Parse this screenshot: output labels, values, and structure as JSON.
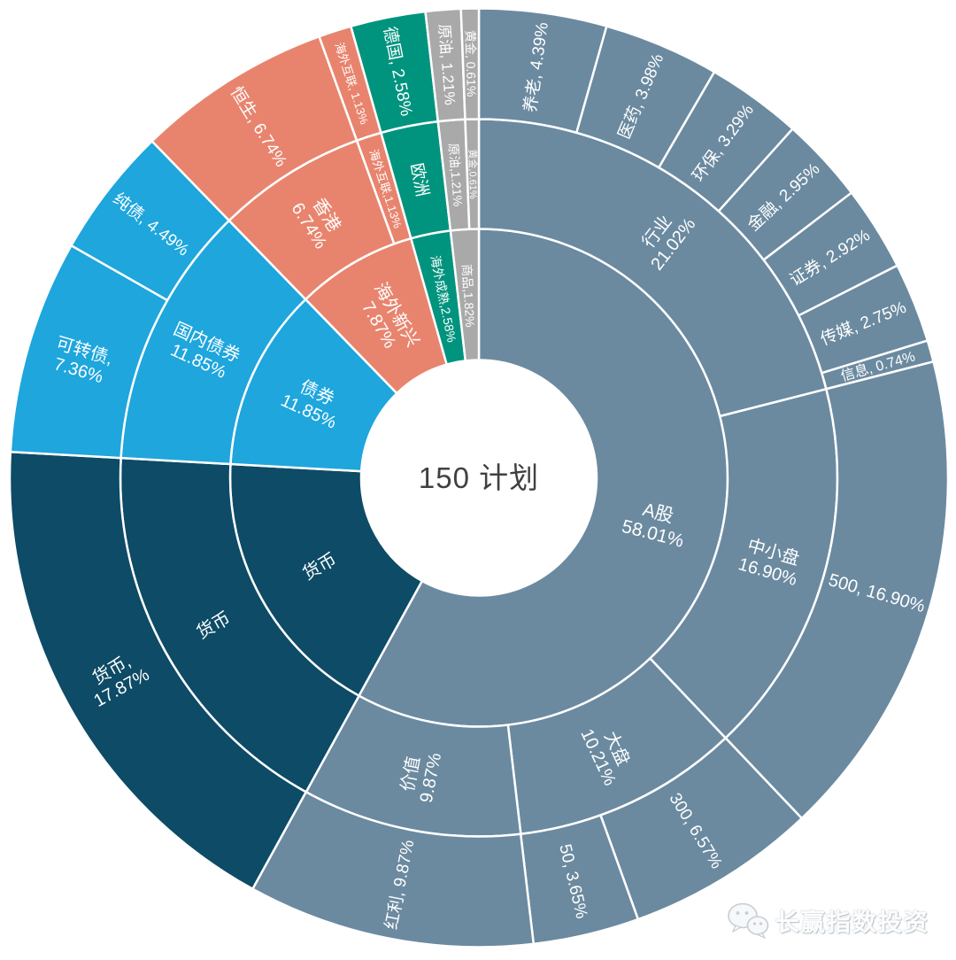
{
  "chart_data": {
    "type": "sunburst",
    "title": "150 计划",
    "center_label": "150 计划",
    "unit": "%",
    "layout_hints": {
      "start_angle": "12-oclock",
      "direction": "clockwise",
      "rings": 3,
      "labels": "radial, flipped on left half"
    },
    "palette": {
      "a_stock": "#6B8AA0",
      "money": "#0D4B66",
      "bond": "#1EA6DD",
      "overseas_emerging": "#E8846E",
      "overseas_developed": "#00947E",
      "commodity": "#A9A9A9"
    },
    "rings": [
      {
        "level": 1,
        "segments": [
          {
            "name": "A股",
            "value": 58.01,
            "family": "a_stock",
            "label_lines": [
              "A股",
              "58.01%"
            ]
          },
          {
            "name": "货币",
            "value": 17.87,
            "family": "money",
            "label_lines": [
              "货币"
            ]
          },
          {
            "name": "债券",
            "value": 11.85,
            "family": "bond",
            "label_lines": [
              "债券",
              "11.85%"
            ]
          },
          {
            "name": "海外新兴",
            "value": 7.87,
            "family": "overseas_emerging",
            "label_lines": [
              "海外新兴",
              "7.87%"
            ]
          },
          {
            "name": "海外成熟",
            "value": 2.58,
            "family": "overseas_developed",
            "label_lines": [
              "海外成熟,2.58%"
            ]
          },
          {
            "name": "商品",
            "value": 1.82,
            "family": "commodity",
            "label_lines": [
              "商品,1.82%"
            ]
          }
        ]
      },
      {
        "level": 2,
        "segments": [
          {
            "name": "行业",
            "value": 21.02,
            "family": "a_stock",
            "label_lines": [
              "行业",
              "21.02%"
            ]
          },
          {
            "name": "中小盘",
            "value": 16.9,
            "family": "a_stock",
            "label_lines": [
              "中小盘",
              "16.90%"
            ]
          },
          {
            "name": "大盘",
            "value": 10.21,
            "family": "a_stock",
            "label_lines": [
              "大盘",
              "10.21%"
            ]
          },
          {
            "name": "价值",
            "value": 9.87,
            "family": "a_stock",
            "label_lines": [
              "价值",
              "9.87%"
            ]
          },
          {
            "name": "货币",
            "value": 17.87,
            "family": "money",
            "label_lines": [
              "货币"
            ]
          },
          {
            "name": "国内债券",
            "value": 11.85,
            "family": "bond",
            "label_lines": [
              "国内债券",
              "11.85%"
            ]
          },
          {
            "name": "香港",
            "value": 6.74,
            "family": "overseas_emerging",
            "label_lines": [
              "香港",
              "6.74%"
            ]
          },
          {
            "name": "海外互联",
            "value": 1.13,
            "family": "overseas_emerging",
            "label_lines": [
              "海外互联,1.13%"
            ]
          },
          {
            "name": "欧洲",
            "value": 2.58,
            "family": "overseas_developed",
            "label_lines": [
              "欧洲"
            ]
          },
          {
            "name": "原油",
            "value": 1.21,
            "family": "commodity",
            "label_lines": [
              "原油,1.21%"
            ]
          },
          {
            "name": "黄金",
            "value": 0.61,
            "family": "commodity",
            "label_lines": [
              "黄金,0.61%"
            ]
          }
        ]
      },
      {
        "level": 3,
        "segments": [
          {
            "name": "养老",
            "value": 4.39,
            "family": "a_stock",
            "label_lines": [
              "养老, 4.39%"
            ]
          },
          {
            "name": "医药",
            "value": 3.98,
            "family": "a_stock",
            "label_lines": [
              "医药, 3.98%"
            ]
          },
          {
            "name": "环保",
            "value": 3.29,
            "family": "a_stock",
            "label_lines": [
              "环保, 3.29%"
            ]
          },
          {
            "name": "金融",
            "value": 2.95,
            "family": "a_stock",
            "label_lines": [
              "金融, 2.95%"
            ]
          },
          {
            "name": "证券",
            "value": 2.92,
            "family": "a_stock",
            "label_lines": [
              "证券, 2.92%"
            ]
          },
          {
            "name": "传媒",
            "value": 2.75,
            "family": "a_stock",
            "label_lines": [
              "传媒, 2.75%"
            ]
          },
          {
            "name": "信息",
            "value": 0.74,
            "family": "a_stock",
            "label_lines": [
              "信息, 0.74%"
            ]
          },
          {
            "name": "500",
            "value": 16.9,
            "family": "a_stock",
            "label_lines": [
              "500, 16.90%"
            ]
          },
          {
            "name": "300",
            "value": 6.57,
            "family": "a_stock",
            "label_lines": [
              "300, 6.57%"
            ]
          },
          {
            "name": "50",
            "value": 3.65,
            "family": "a_stock",
            "label_lines": [
              "50, 3.65%"
            ]
          },
          {
            "name": "红利",
            "value": 9.87,
            "family": "a_stock",
            "label_lines": [
              "红利, 9.87%"
            ]
          },
          {
            "name": "货币",
            "value": 17.87,
            "family": "money",
            "label_lines": [
              "货币,",
              "17.87%"
            ]
          },
          {
            "name": "可转债",
            "value": 7.36,
            "family": "bond",
            "label_lines": [
              "可转债,",
              "7.36%"
            ]
          },
          {
            "name": "纯债",
            "value": 4.49,
            "family": "bond",
            "label_lines": [
              "纯债, 4.49%"
            ]
          },
          {
            "name": "恒生",
            "value": 6.74,
            "family": "overseas_emerging",
            "label_lines": [
              "恒生, 6.74%"
            ]
          },
          {
            "name": "海外互联",
            "value": 1.13,
            "family": "overseas_emerging",
            "label_lines": [
              "海外互联, 1.13%"
            ]
          },
          {
            "name": "德国",
            "value": 2.58,
            "family": "overseas_developed",
            "label_lines": [
              "德国, 2.58%"
            ]
          },
          {
            "name": "原油",
            "value": 1.21,
            "family": "commodity",
            "label_lines": [
              "原油, 1.21%"
            ]
          },
          {
            "name": "黄金",
            "value": 0.61,
            "family": "commodity",
            "label_lines": [
              "黄金, 0.61%"
            ]
          }
        ]
      }
    ]
  },
  "watermark": {
    "label": "长赢指数投资"
  }
}
